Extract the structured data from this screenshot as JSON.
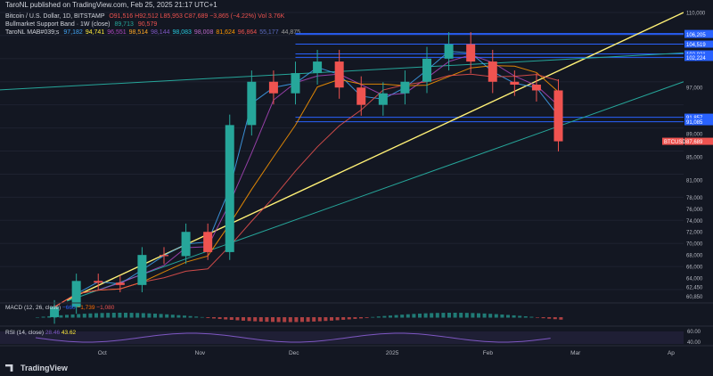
{
  "header": {
    "publisher": "TaroNL published on TradingView.com, Feb 25, 2025 21:17 UTC+1"
  },
  "legend": {
    "symbol": "Bitcoin / U.S. Dollar, 1D, BITSTAMP",
    "ohlc": "O91,516 H92,512 L85,953 C87,689 −3,865 (−4.22%) Vol 3.76K",
    "bull_band": "Bullmarket Support Band · 1W (close)",
    "bull_band_values": [
      "89,713",
      "90,579"
    ],
    "mab": "TaroNL MAB#039;s",
    "mab_values": [
      "97,182",
      "94,741",
      "96,551",
      "98,514",
      "98,144",
      "98,083",
      "98,008",
      "81,624",
      "96,864",
      "55,177",
      "44,875"
    ],
    "mab_colors": [
      "#42a5f5",
      "#ffeb3b",
      "#ab47bc",
      "#ffa726",
      "#7e57c2",
      "#26c6da",
      "#ba68c8",
      "#ff9800",
      "#ef5350",
      "#5c6bc0",
      "#9e9e9e"
    ]
  },
  "macd": {
    "label": "MACD (12, 26, close)",
    "values": [
      "−660",
      "−1,739",
      "−1,080"
    ]
  },
  "rsi": {
    "label": "RSI (14, close)",
    "values": [
      "28.46",
      "43.62"
    ],
    "scale": [
      "60.00",
      "40.00"
    ]
  },
  "footer": {
    "brand": "TradingView"
  },
  "colors": {
    "up": "#26a69a",
    "down": "#ef5350",
    "bg": "#131722",
    "trend": "#fff176",
    "box": "#2962ff"
  },
  "chart_data": {
    "type": "line",
    "title": "Bitcoin / U.S. Dollar, 1D, BITSTAMP",
    "x": [
      "2024-09-16",
      "2024-09-23",
      "2024-09-30",
      "2024-10-07",
      "2024-10-14",
      "2024-10-21",
      "2024-10-28",
      "2024-11-04",
      "2024-11-11",
      "2024-11-18",
      "2024-11-25",
      "2024-12-02",
      "2024-12-09",
      "2024-12-16",
      "2024-12-23",
      "2024-12-30",
      "2025-01-06",
      "2025-01-13",
      "2025-01-20",
      "2025-01-27",
      "2025-02-03",
      "2025-02-10",
      "2025-02-17",
      "2025-02-24"
    ],
    "x_tick_labels": [
      "Oct",
      "Nov",
      "Dec",
      "2025",
      "Feb",
      "Mar",
      "Ap"
    ],
    "series": [
      {
        "values": [
          59000,
          63500,
          63200,
          62800,
          68000,
          67800,
          72000,
          68500,
          90500,
          98000,
          96000,
          99500,
          101500,
          97000,
          94000,
          96000,
          98000,
          102000,
          104500,
          101500,
          98000,
          97500,
          96500,
          87689
        ]
      }
    ],
    "price_axis": [
      "110,000",
      "106,359",
      "106,205",
      "104,519",
      "102,821",
      "102,224",
      "97,000",
      "91,857",
      "91,085",
      "89,000",
      "87,689",
      "85,000",
      "81,000",
      "78,000",
      "76,000",
      "74,000",
      "72,000",
      "70,000",
      "68,000",
      "66,000",
      "64,000",
      "62,450",
      "60,850"
    ],
    "highlighted_levels": [
      "106,359",
      "106,205",
      "104,519",
      "102,821",
      "102,224",
      "91,857",
      "91,085"
    ],
    "current_price_tag": "87,689",
    "current_symbol_tag": "BTCUSD",
    "ylim": [
      60000,
      110000
    ]
  }
}
